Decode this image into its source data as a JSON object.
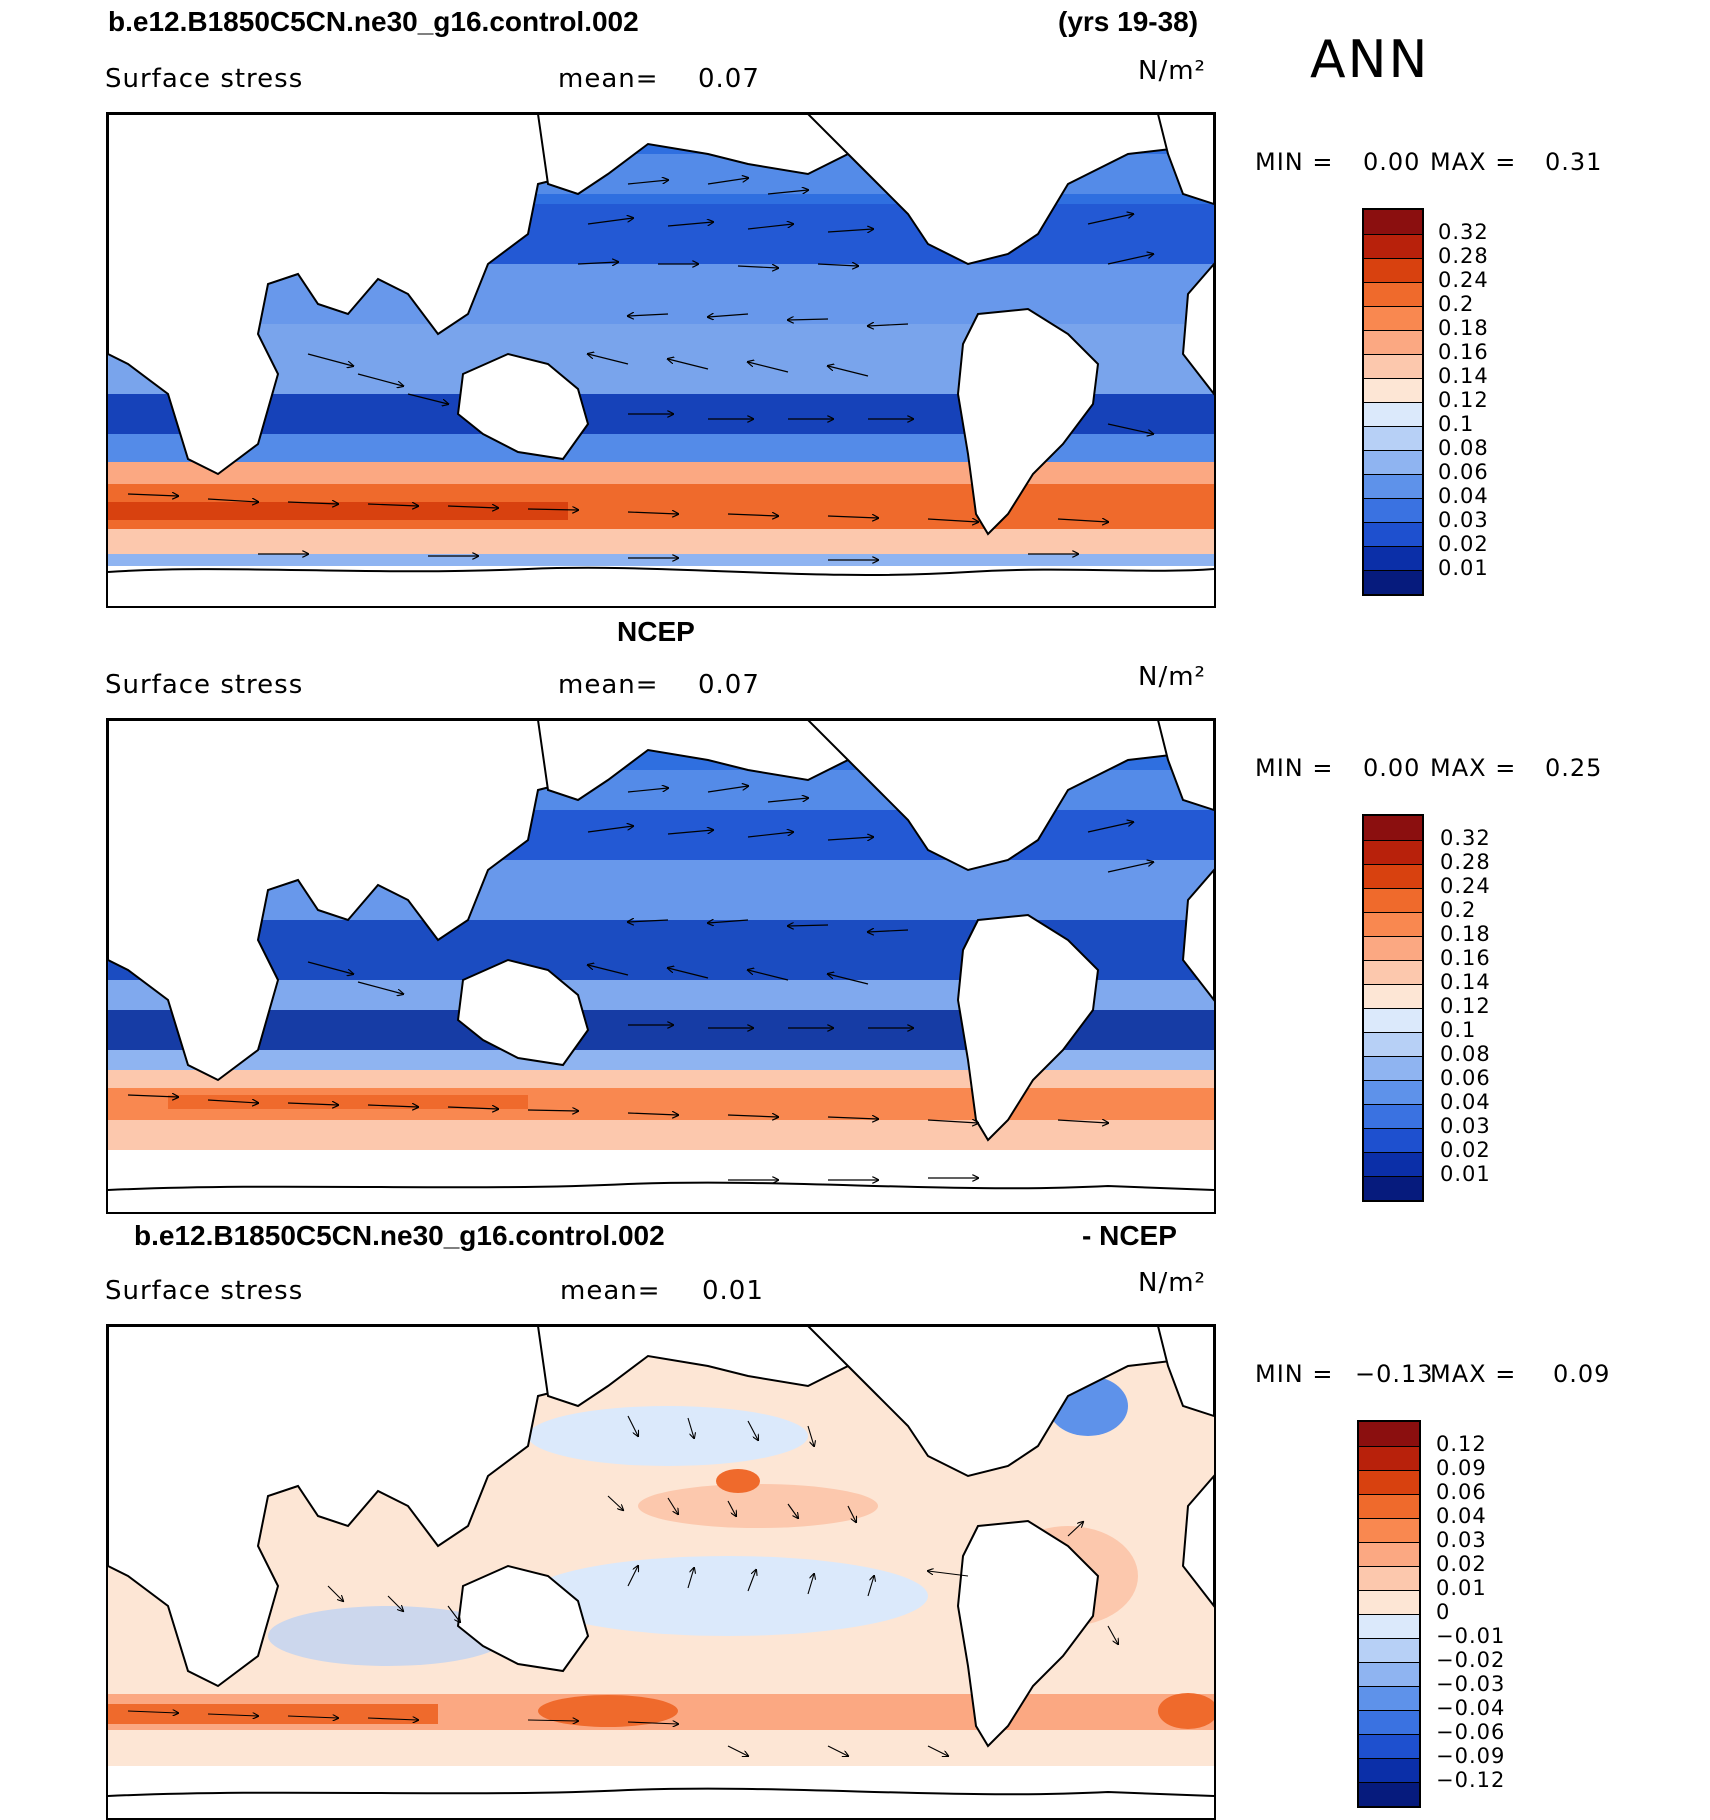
{
  "header": {
    "case_title": "b.e12.B1850C5CN.ne30_g16.control.002",
    "years": "(yrs 19-38)",
    "season": "ANN"
  },
  "panels": [
    {
      "title": "",
      "variable": "Surface stress",
      "mean_label": "mean=",
      "mean_value": "0.07",
      "units": "N/m²",
      "min_label": "MIN =",
      "min_value": "0.00",
      "max_label": "MAX =",
      "max_value": "0.31",
      "colorbar_levels": [
        "0.32",
        "0.28",
        "0.24",
        "0.2",
        "0.18",
        "0.16",
        "0.14",
        "0.12",
        "0.1",
        "0.08",
        "0.06",
        "0.04",
        "0.03",
        "0.02",
        "0.01"
      ],
      "colorbar_colors": [
        "#8b0f0f",
        "#b8210b",
        "#d8410f",
        "#ef6a2c",
        "#f98850",
        "#fba882",
        "#fcc8ad",
        "#fde6d5",
        "#dbe9fb",
        "#b7d0f6",
        "#8fb4f1",
        "#5e92ea",
        "#3a72e1",
        "#1e50cf",
        "#0b2fa8",
        "#061b7d"
      ]
    },
    {
      "title": "NCEP",
      "variable": "Surface stress",
      "mean_label": "mean=",
      "mean_value": "0.07",
      "units": "N/m²",
      "min_label": "MIN =",
      "min_value": "0.00",
      "max_label": "MAX =",
      "max_value": "0.25",
      "colorbar_levels": [
        "0.32",
        "0.28",
        "0.24",
        "0.2",
        "0.18",
        "0.16",
        "0.14",
        "0.12",
        "0.1",
        "0.08",
        "0.06",
        "0.04",
        "0.03",
        "0.02",
        "0.01"
      ],
      "colorbar_colors": [
        "#8b0f0f",
        "#b8210b",
        "#d8410f",
        "#ef6a2c",
        "#f98850",
        "#fba882",
        "#fcc8ad",
        "#fde6d5",
        "#dbe9fb",
        "#b7d0f6",
        "#8fb4f1",
        "#5e92ea",
        "#3a72e1",
        "#1e50cf",
        "#0b2fa8",
        "#061b7d"
      ]
    },
    {
      "title_left": "b.e12.B1850C5CN.ne30_g16.control.002",
      "title_right": "- NCEP",
      "variable": "Surface stress",
      "mean_label": "mean=",
      "mean_value": "0.01",
      "units": "N/m²",
      "min_label": "MIN =",
      "min_value": "−0.13",
      "max_label": "MAX =",
      "max_value": "0.09",
      "colorbar_levels": [
        "0.12",
        "0.09",
        "0.06",
        "0.04",
        "0.03",
        "0.02",
        "0.01",
        "0",
        "−0.01",
        "−0.02",
        "−0.03",
        "−0.04",
        "−0.06",
        "−0.09",
        "−0.12"
      ],
      "colorbar_colors": [
        "#8b0f0f",
        "#b8210b",
        "#d8410f",
        "#ef6a2c",
        "#f98850",
        "#fba882",
        "#fcc8ad",
        "#fde6d5",
        "#dbe9fb",
        "#b7d0f6",
        "#8fb4f1",
        "#5e92ea",
        "#3a72e1",
        "#1e50cf",
        "#0b2fa8",
        "#061b7d"
      ]
    }
  ]
}
